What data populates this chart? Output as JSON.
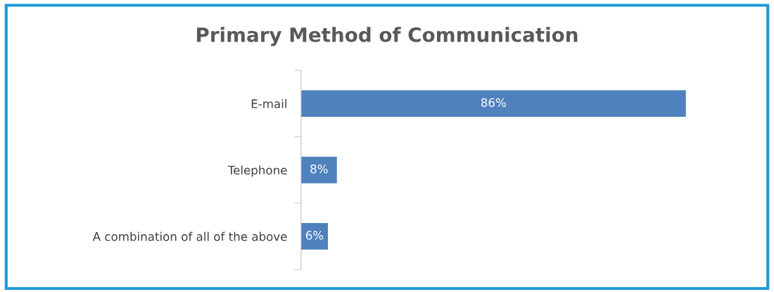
{
  "chart_data": {
    "type": "bar",
    "orientation": "horizontal",
    "title": "Primary Method of Communication",
    "categories": [
      "E-mail",
      "Telephone",
      "A combination of all of the above"
    ],
    "values": [
      86,
      8,
      6
    ],
    "color": "#4f81bd",
    "value_labels": [
      "86%",
      "8%",
      "6%"
    ]
  }
}
